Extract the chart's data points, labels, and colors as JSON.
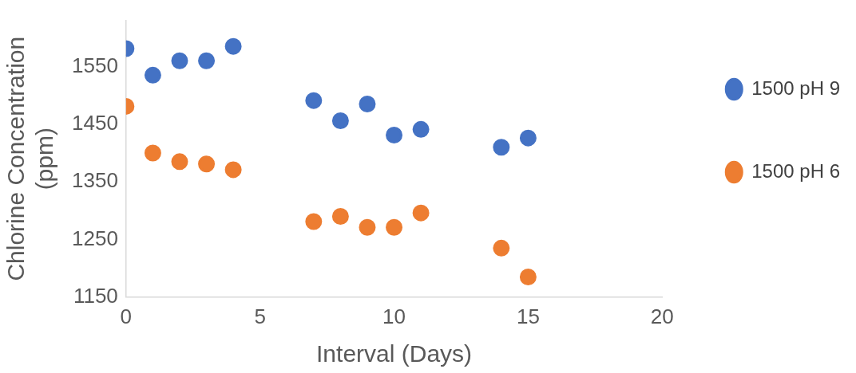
{
  "chart_data": {
    "type": "scatter",
    "xlabel": "Interval (Days)",
    "ylabel": "Chlorine Concentration (ppm)",
    "xlim": [
      0,
      20
    ],
    "xticks": [
      0,
      5,
      10,
      15,
      20
    ],
    "ylim": [
      1150,
      1630
    ],
    "yticks": [
      1150,
      1250,
      1350,
      1450,
      1550
    ],
    "grid": false,
    "legend": "right",
    "marker": "circle",
    "series": [
      {
        "name": "1500 pH 9",
        "color": "#4472c4",
        "x": [
          0,
          1,
          2,
          3,
          4,
          7,
          8,
          9,
          10,
          11,
          14,
          15
        ],
        "values": [
          1581,
          1535,
          1560,
          1560,
          1585,
          1491,
          1456,
          1485,
          1431,
          1441,
          1410,
          1426
        ]
      },
      {
        "name": "1500 pH 6",
        "color": "#ed7d31",
        "x": [
          0,
          1,
          2,
          3,
          4,
          7,
          8,
          9,
          10,
          11,
          14,
          15
        ],
        "values": [
          1481,
          1400,
          1385,
          1381,
          1371,
          1281,
          1290,
          1271,
          1271,
          1296,
          1235,
          1185
        ]
      }
    ]
  }
}
